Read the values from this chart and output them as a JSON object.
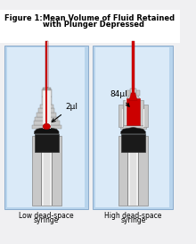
{
  "title_bold": "Figure 1:",
  "title_main": "Mean Volume of Fluid Retained\nwith Plunger Depressed",
  "bg_outer": "#f0f0f2",
  "panel_bg_light": "#daeaf8",
  "panel_bg_mid": "#b8d4ec",
  "left_label_line1": "Low dead-space",
  "left_label_line2": "syringe",
  "right_label_line1": "High dead-space",
  "right_label_line2": "syringe",
  "left_annotation": "2μl",
  "right_annotation": "84μl",
  "needle_color": "#cc0000",
  "body_light": "#e0e0e0",
  "body_mid": "#c8c8c8",
  "body_dark": "#a8a8a8",
  "body_edge": "#888888",
  "inner_light": "#eeeeee",
  "plunger_color": "#1a1a1a",
  "fluid_color": "#cc0000",
  "fluid_edge": "#990000",
  "arrow_color": "#111111",
  "white": "#ffffff",
  "barrel_light": "#d8d8d8",
  "barrel_white": "#f0f0f0"
}
